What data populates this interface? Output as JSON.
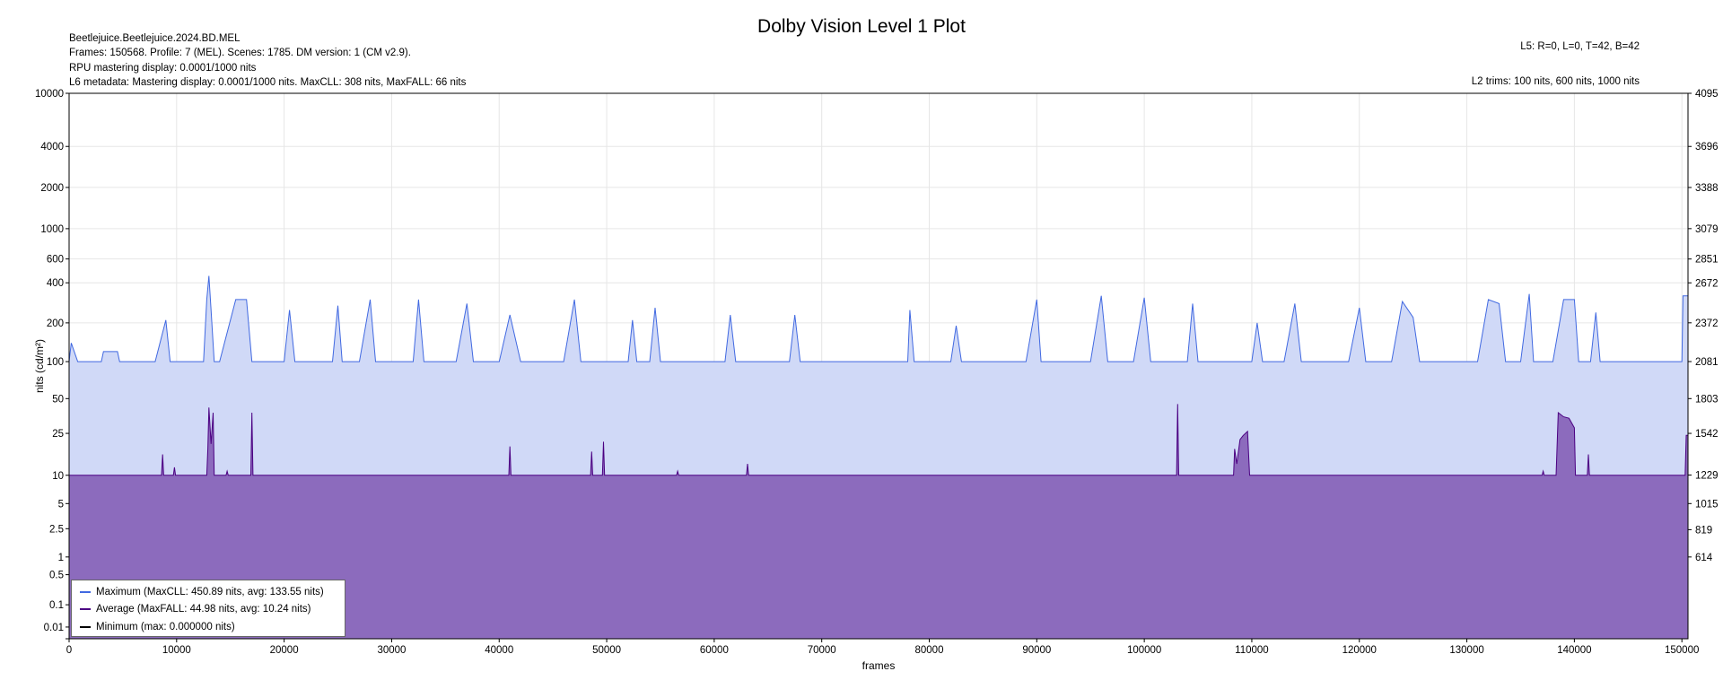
{
  "header": {
    "title": "Dolby Vision Level 1 Plot",
    "info_lines": [
      "Beetlejuice.Beetlejuice.2024.BD.MEL",
      "Frames: 150568. Profile: 7 (MEL). Scenes: 1785. DM version: 1 (CM v2.9).",
      "RPU mastering display: 0.0001/1000 nits",
      "L6 metadata: Mastering display: 0.0001/1000 nits. MaxCLL: 308 nits, MaxFALL: 66 nits"
    ],
    "l5": "L5: R=0, L=0, T=42, B=42",
    "l2": "L2 trims: 100 nits, 600 nits, 1000 nits"
  },
  "legend": {
    "items": [
      {
        "label": "Maximum (MaxCLL: 450.89 nits, avg: 133.55 nits)",
        "color": "#4169e1"
      },
      {
        "label": "Average (MaxFALL: 44.98 nits, avg: 10.24 nits)",
        "color": "#4b0082"
      },
      {
        "label": "Minimum (max: 0.000000 nits)",
        "color": "#000000"
      }
    ]
  },
  "colors": {
    "max_line": "#4169e1",
    "max_fill": "#d0d9f7",
    "avg_line": "#4b0082",
    "avg_fill": "#8c6bbd",
    "grid": "#e6e6e6"
  },
  "chart_data": {
    "type": "area",
    "title": "Dolby Vision Level 1 Plot",
    "xlabel": "frames",
    "ylabel": "nits (cd/m²)",
    "xlim": [
      0,
      150568
    ],
    "x_ticks": [
      0,
      10000,
      20000,
      30000,
      40000,
      50000,
      60000,
      70000,
      80000,
      90000,
      100000,
      110000,
      120000,
      130000,
      140000,
      150000
    ],
    "y_scale": "PQ",
    "ylim": [
      0,
      10000
    ],
    "y_ticks_left": [
      "0",
      "0.01",
      "0.1",
      "0.5",
      "1",
      "2.5",
      "5",
      "10",
      "25",
      "50",
      "100",
      "200",
      "400",
      "600",
      "1000",
      "2000",
      "4000",
      "10000"
    ],
    "y_ticks_right": [
      "614",
      "819",
      "1015",
      "1229",
      "1542",
      "1803",
      "2081",
      "2372",
      "2672",
      "2851",
      "3079",
      "3388",
      "3696",
      "4095"
    ],
    "grid": true,
    "legend_position": "bottom-left",
    "series": [
      {
        "name": "Maximum (MaxCLL: 450.89 nits, avg: 133.55 nits)",
        "baseline": 100,
        "points": [
          [
            0,
            100
          ],
          [
            200,
            140
          ],
          [
            800,
            100
          ],
          [
            3000,
            100
          ],
          [
            3200,
            120
          ],
          [
            4500,
            120
          ],
          [
            4700,
            100
          ],
          [
            5000,
            100
          ],
          [
            8000,
            100
          ],
          [
            9000,
            210
          ],
          [
            9400,
            100
          ],
          [
            12500,
            100
          ],
          [
            12800,
            300
          ],
          [
            13000,
            450
          ],
          [
            13200,
            250
          ],
          [
            13500,
            100
          ],
          [
            14000,
            100
          ],
          [
            15500,
            300
          ],
          [
            16500,
            300
          ],
          [
            17000,
            100
          ],
          [
            20000,
            100
          ],
          [
            20500,
            250
          ],
          [
            21000,
            100
          ],
          [
            24500,
            100
          ],
          [
            25000,
            270
          ],
          [
            25400,
            100
          ],
          [
            27000,
            100
          ],
          [
            28000,
            300
          ],
          [
            28500,
            100
          ],
          [
            32000,
            100
          ],
          [
            32500,
            300
          ],
          [
            33000,
            100
          ],
          [
            36000,
            100
          ],
          [
            37000,
            280
          ],
          [
            37600,
            100
          ],
          [
            40000,
            100
          ],
          [
            41000,
            230
          ],
          [
            42000,
            100
          ],
          [
            46000,
            100
          ],
          [
            47000,
            300
          ],
          [
            47600,
            100
          ],
          [
            52000,
            100
          ],
          [
            52400,
            210
          ],
          [
            52800,
            100
          ],
          [
            54000,
            100
          ],
          [
            54500,
            260
          ],
          [
            55000,
            100
          ],
          [
            61000,
            100
          ],
          [
            61500,
            230
          ],
          [
            62000,
            100
          ],
          [
            67000,
            100
          ],
          [
            67500,
            230
          ],
          [
            68000,
            100
          ],
          [
            78000,
            100
          ],
          [
            78200,
            250
          ],
          [
            78600,
            100
          ],
          [
            82000,
            100
          ],
          [
            82500,
            190
          ],
          [
            83000,
            100
          ],
          [
            89000,
            100
          ],
          [
            90000,
            300
          ],
          [
            90400,
            100
          ],
          [
            95000,
            100
          ],
          [
            96000,
            320
          ],
          [
            96600,
            100
          ],
          [
            99000,
            100
          ],
          [
            100000,
            310
          ],
          [
            100600,
            100
          ],
          [
            104000,
            100
          ],
          [
            104500,
            280
          ],
          [
            105000,
            100
          ],
          [
            110000,
            100
          ],
          [
            110500,
            200
          ],
          [
            111000,
            100
          ],
          [
            113000,
            100
          ],
          [
            114000,
            280
          ],
          [
            114600,
            100
          ],
          [
            119000,
            100
          ],
          [
            120000,
            260
          ],
          [
            120600,
            100
          ],
          [
            123000,
            100
          ],
          [
            124000,
            290
          ],
          [
            125000,
            220
          ],
          [
            125600,
            100
          ],
          [
            131000,
            100
          ],
          [
            132000,
            300
          ],
          [
            133000,
            280
          ],
          [
            133600,
            100
          ],
          [
            135000,
            100
          ],
          [
            135800,
            330
          ],
          [
            136200,
            100
          ],
          [
            138000,
            100
          ],
          [
            139000,
            300
          ],
          [
            140000,
            300
          ],
          [
            140400,
            100
          ],
          [
            141500,
            100
          ],
          [
            142000,
            240
          ],
          [
            142400,
            100
          ],
          [
            150000,
            100
          ],
          [
            150100,
            320
          ],
          [
            150568,
            320
          ]
        ]
      },
      {
        "name": "Average (MaxFALL: 44.98 nits, avg: 10.24 nits)",
        "baseline": 10,
        "points": [
          [
            0,
            10
          ],
          [
            8600,
            10
          ],
          [
            8700,
            16
          ],
          [
            8800,
            10
          ],
          [
            9700,
            10
          ],
          [
            9800,
            12
          ],
          [
            9900,
            10
          ],
          [
            12800,
            10
          ],
          [
            12900,
            18
          ],
          [
            13000,
            42
          ],
          [
            13200,
            20
          ],
          [
            13400,
            38
          ],
          [
            13500,
            10
          ],
          [
            14600,
            10
          ],
          [
            14700,
            11
          ],
          [
            14800,
            10
          ],
          [
            16900,
            10
          ],
          [
            17000,
            38
          ],
          [
            17100,
            10
          ],
          [
            40900,
            10
          ],
          [
            41000,
            19
          ],
          [
            41100,
            10
          ],
          [
            48500,
            10
          ],
          [
            48600,
            17
          ],
          [
            48700,
            10
          ],
          [
            49600,
            10
          ],
          [
            49700,
            21
          ],
          [
            49800,
            10
          ],
          [
            56500,
            10
          ],
          [
            56600,
            11
          ],
          [
            56700,
            10
          ],
          [
            63000,
            10
          ],
          [
            63100,
            13
          ],
          [
            63200,
            10
          ],
          [
            103000,
            10
          ],
          [
            103100,
            45
          ],
          [
            103200,
            10
          ],
          [
            108300,
            10
          ],
          [
            108400,
            18
          ],
          [
            108600,
            13
          ],
          [
            108900,
            22
          ],
          [
            109200,
            24
          ],
          [
            109600,
            26
          ],
          [
            109800,
            10
          ],
          [
            137000,
            10
          ],
          [
            137100,
            11
          ],
          [
            137200,
            10
          ],
          [
            138300,
            10
          ],
          [
            138500,
            38
          ],
          [
            139000,
            35
          ],
          [
            139500,
            34
          ],
          [
            140000,
            28
          ],
          [
            140100,
            10
          ],
          [
            141200,
            10
          ],
          [
            141300,
            16
          ],
          [
            141400,
            10
          ],
          [
            150300,
            10
          ],
          [
            150400,
            24
          ],
          [
            150568,
            24
          ]
        ]
      },
      {
        "name": "Minimum (max: 0.000000 nits)",
        "baseline": 0,
        "points": [
          [
            0,
            0
          ],
          [
            150568,
            0
          ]
        ]
      }
    ]
  }
}
